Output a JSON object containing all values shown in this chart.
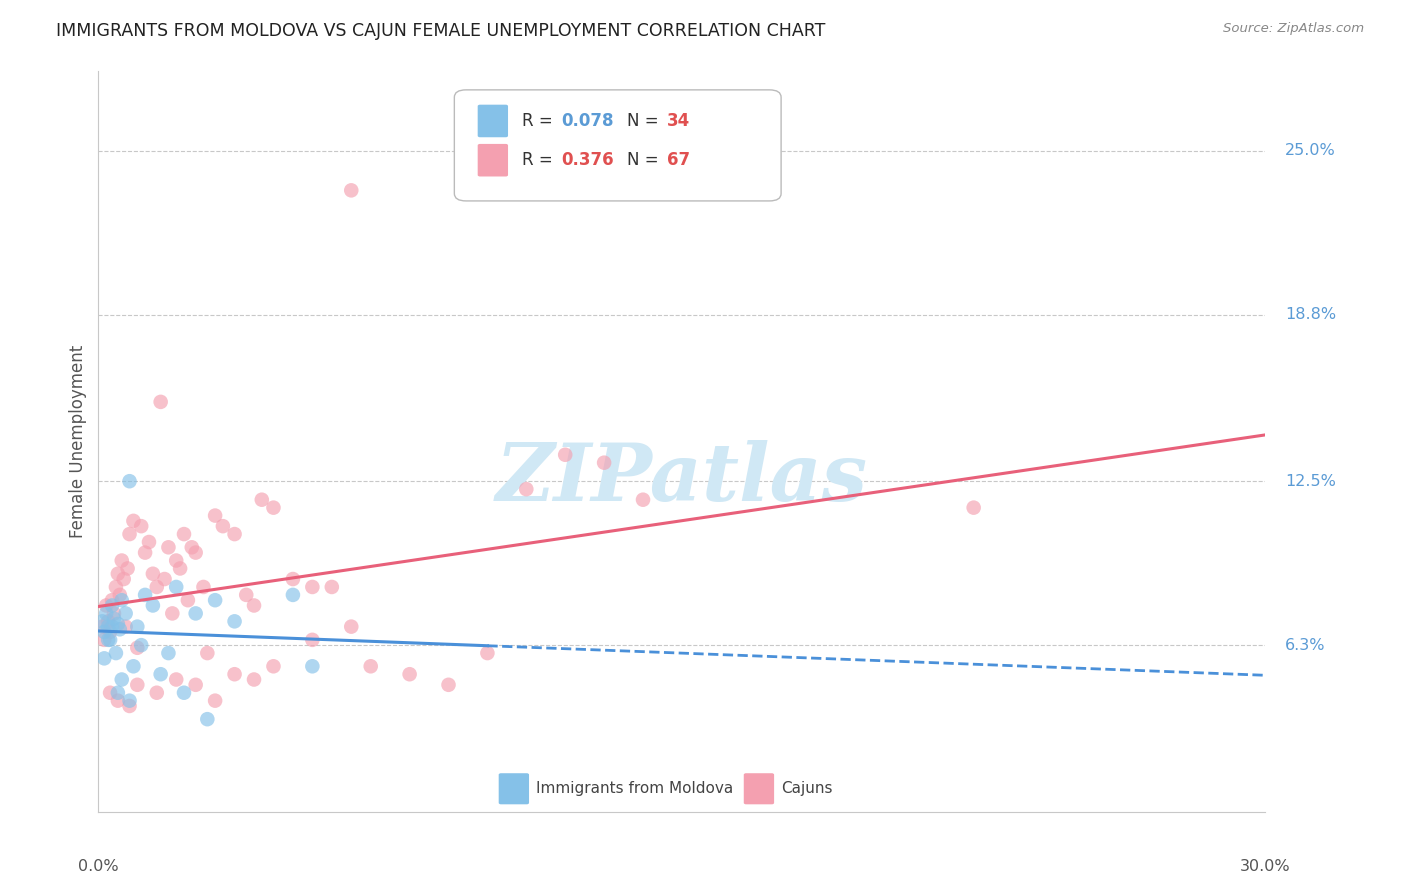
{
  "title": "IMMIGRANTS FROM MOLDOVA VS CAJUN FEMALE UNEMPLOYMENT CORRELATION CHART",
  "source": "Source: ZipAtlas.com",
  "ylabel": "Female Unemployment",
  "ytick_labels": [
    "25.0%",
    "18.8%",
    "12.5%",
    "6.3%"
  ],
  "ytick_values": [
    25.0,
    18.8,
    12.5,
    6.3
  ],
  "xmin": 0.0,
  "xmax": 30.0,
  "ymin": 0.0,
  "ymax": 28.0,
  "moldova_color": "#85c1e8",
  "cajun_color": "#f4a0b0",
  "moldova_line_color": "#4a90d9",
  "cajun_line_color": "#e8607a",
  "moldova_R": 0.078,
  "moldova_N": 34,
  "cajun_R": 0.376,
  "cajun_N": 67,
  "moldova_scatter_x": [
    0.1,
    0.15,
    0.2,
    0.25,
    0.3,
    0.35,
    0.4,
    0.45,
    0.5,
    0.55,
    0.6,
    0.7,
    0.8,
    0.9,
    1.0,
    1.1,
    1.2,
    1.4,
    1.6,
    1.8,
    2.0,
    2.2,
    2.5,
    3.0,
    3.5,
    5.0,
    5.5,
    0.15,
    0.25,
    0.35,
    0.5,
    0.6,
    0.8,
    2.8
  ],
  "moldova_scatter_y": [
    7.2,
    6.8,
    7.5,
    7.0,
    6.5,
    7.8,
    7.3,
    6.0,
    7.1,
    6.9,
    8.0,
    7.5,
    12.5,
    5.5,
    7.0,
    6.3,
    8.2,
    7.8,
    5.2,
    6.0,
    8.5,
    4.5,
    7.5,
    8.0,
    7.2,
    8.2,
    5.5,
    5.8,
    6.5,
    7.0,
    4.5,
    5.0,
    4.2,
    3.5
  ],
  "cajun_scatter_x": [
    0.1,
    0.15,
    0.2,
    0.25,
    0.3,
    0.35,
    0.4,
    0.45,
    0.5,
    0.55,
    0.6,
    0.65,
    0.7,
    0.75,
    0.8,
    0.9,
    1.0,
    1.1,
    1.2,
    1.3,
    1.4,
    1.5,
    1.6,
    1.7,
    1.8,
    1.9,
    2.0,
    2.1,
    2.2,
    2.3,
    2.4,
    2.5,
    2.7,
    2.8,
    3.0,
    3.2,
    3.5,
    3.8,
    4.0,
    4.2,
    4.5,
    5.0,
    5.5,
    6.0,
    6.5,
    7.0,
    8.0,
    9.0,
    10.0,
    11.0,
    12.0,
    13.0,
    14.0,
    0.3,
    0.5,
    0.8,
    1.0,
    1.5,
    2.0,
    2.5,
    3.0,
    3.5,
    4.0,
    4.5,
    5.5,
    22.5,
    6.5
  ],
  "cajun_scatter_y": [
    7.0,
    6.5,
    7.8,
    7.2,
    6.8,
    8.0,
    7.5,
    8.5,
    9.0,
    8.2,
    9.5,
    8.8,
    7.0,
    9.2,
    10.5,
    11.0,
    6.2,
    10.8,
    9.8,
    10.2,
    9.0,
    8.5,
    15.5,
    8.8,
    10.0,
    7.5,
    9.5,
    9.2,
    10.5,
    8.0,
    10.0,
    9.8,
    8.5,
    6.0,
    11.2,
    10.8,
    10.5,
    8.2,
    7.8,
    11.8,
    5.5,
    8.8,
    6.5,
    8.5,
    7.0,
    5.5,
    5.2,
    4.8,
    6.0,
    12.2,
    13.5,
    13.2,
    11.8,
    4.5,
    4.2,
    4.0,
    4.8,
    4.5,
    5.0,
    4.8,
    4.2,
    5.2,
    5.0,
    11.5,
    8.5,
    11.5,
    23.5
  ],
  "background_color": "#ffffff",
  "grid_color": "#c8c8c8",
  "watermark_color": "#d0e8f5"
}
